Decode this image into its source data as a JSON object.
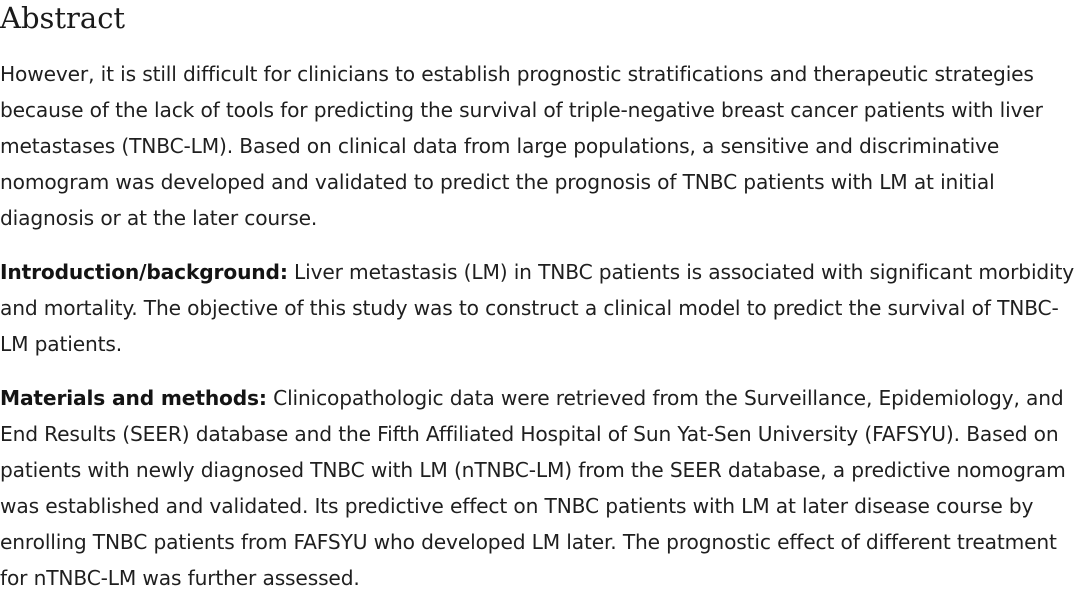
{
  "abstract": {
    "heading": "Abstract",
    "intro_text": "However, it is still difficult for clinicians to establish prognostic stratifications and therapeutic strategies because of the lack of tools for predicting the survival of triple-negative breast cancer patients with liver metastases (TNBC-LM). Based on clinical data from large populations, a sensitive and discriminative nomogram was developed and validated to predict the prognosis of TNBC patients with LM at initial diagnosis or at the later course.",
    "sections": [
      {
        "label": "Introduction/background:",
        "text": " Liver metastasis (LM) in TNBC patients is associated with significant morbidity and mortality. The objective of this study was to construct a clinical model to predict the survival of TNBC-LM patients."
      },
      {
        "label": "Materials and methods:",
        "text": " Clinicopathologic data were retrieved from the Surveillance, Epidemiology, and End Results (SEER) database and the Fifth Affiliated Hospital of Sun Yat-Sen University (FAFSYU). Based on patients with newly diagnosed TNBC with LM (nTNBC-LM) from the SEER database, a predictive nomogram was established and validated. Its predictive effect on TNBC patients with LM at later disease course by enrolling TNBC patients from FAFSYU who developed LM later. The prognostic effect of different treatment for nTNBC-LM was further assessed."
      }
    ]
  }
}
